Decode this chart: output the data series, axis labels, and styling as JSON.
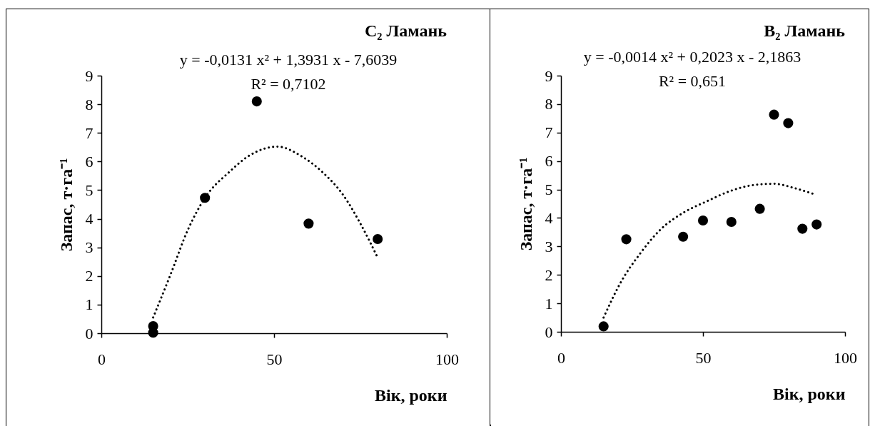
{
  "chart_data": [
    {
      "type": "scatter",
      "title": "C₂ Ламань",
      "xlabel": "Вік, роки",
      "ylabel": "Запас, т·га⁻¹",
      "annotations": [
        "y = -0,0131 x² + 1,3931 x - 7,6039",
        "R² = 0,7102"
      ],
      "xlim": [
        0,
        100
      ],
      "ylim": [
        0,
        9
      ],
      "xticks": [
        0,
        50,
        100
      ],
      "yticks": [
        0,
        1,
        2,
        3,
        4,
        5,
        6,
        7,
        8,
        9
      ],
      "grid": false,
      "series": [
        {
          "type": "scatter",
          "marker": "circle",
          "color": "#000000",
          "x": [
            15,
            15,
            30,
            45,
            60,
            80
          ],
          "values": [
            0.25,
            0.02,
            4.73,
            8.1,
            3.83,
            3.29
          ]
        },
        {
          "type": "line",
          "color": "#000000",
          "line_style": "dotted",
          "x": [
            15,
            20,
            25,
            30,
            37,
            43,
            51,
            58,
            64,
            70,
            75,
            80
          ],
          "values": [
            0.55,
            2.04,
            3.6,
            4.73,
            5.63,
            6.22,
            6.52,
            6.18,
            5.63,
            4.83,
            3.83,
            2.64
          ]
        }
      ]
    },
    {
      "type": "scatter",
      "title": "B₂ Ламань",
      "xlabel": "Вік, роки",
      "ylabel": "Запас, т·га⁻¹",
      "annotations": [
        "y = -0,0014 x² + 0,2023 x - 2,1863",
        "R² = 0,651"
      ],
      "xlim": [
        0,
        100
      ],
      "ylim": [
        0,
        9
      ],
      "xticks": [
        0,
        50,
        100
      ],
      "yticks": [
        0,
        1,
        2,
        3,
        4,
        5,
        6,
        7,
        8,
        9
      ],
      "grid": false,
      "series": [
        {
          "type": "scatter",
          "marker": "circle",
          "color": "#000000",
          "x": [
            15,
            23,
            43,
            50,
            60,
            70,
            75,
            80,
            85,
            90
          ],
          "values": [
            0.19,
            3.25,
            3.34,
            3.91,
            3.86,
            4.32,
            7.63,
            7.33,
            3.62,
            3.77
          ]
        },
        {
          "type": "line",
          "color": "#000000",
          "line_style": "dotted",
          "x": [
            15,
            21,
            27.5,
            35,
            43,
            51,
            60,
            68,
            75,
            82.5,
            89
          ],
          "values": [
            0.5,
            1.73,
            2.7,
            3.59,
            4.18,
            4.57,
            4.96,
            5.16,
            5.2,
            5.04,
            4.84
          ]
        }
      ]
    }
  ]
}
